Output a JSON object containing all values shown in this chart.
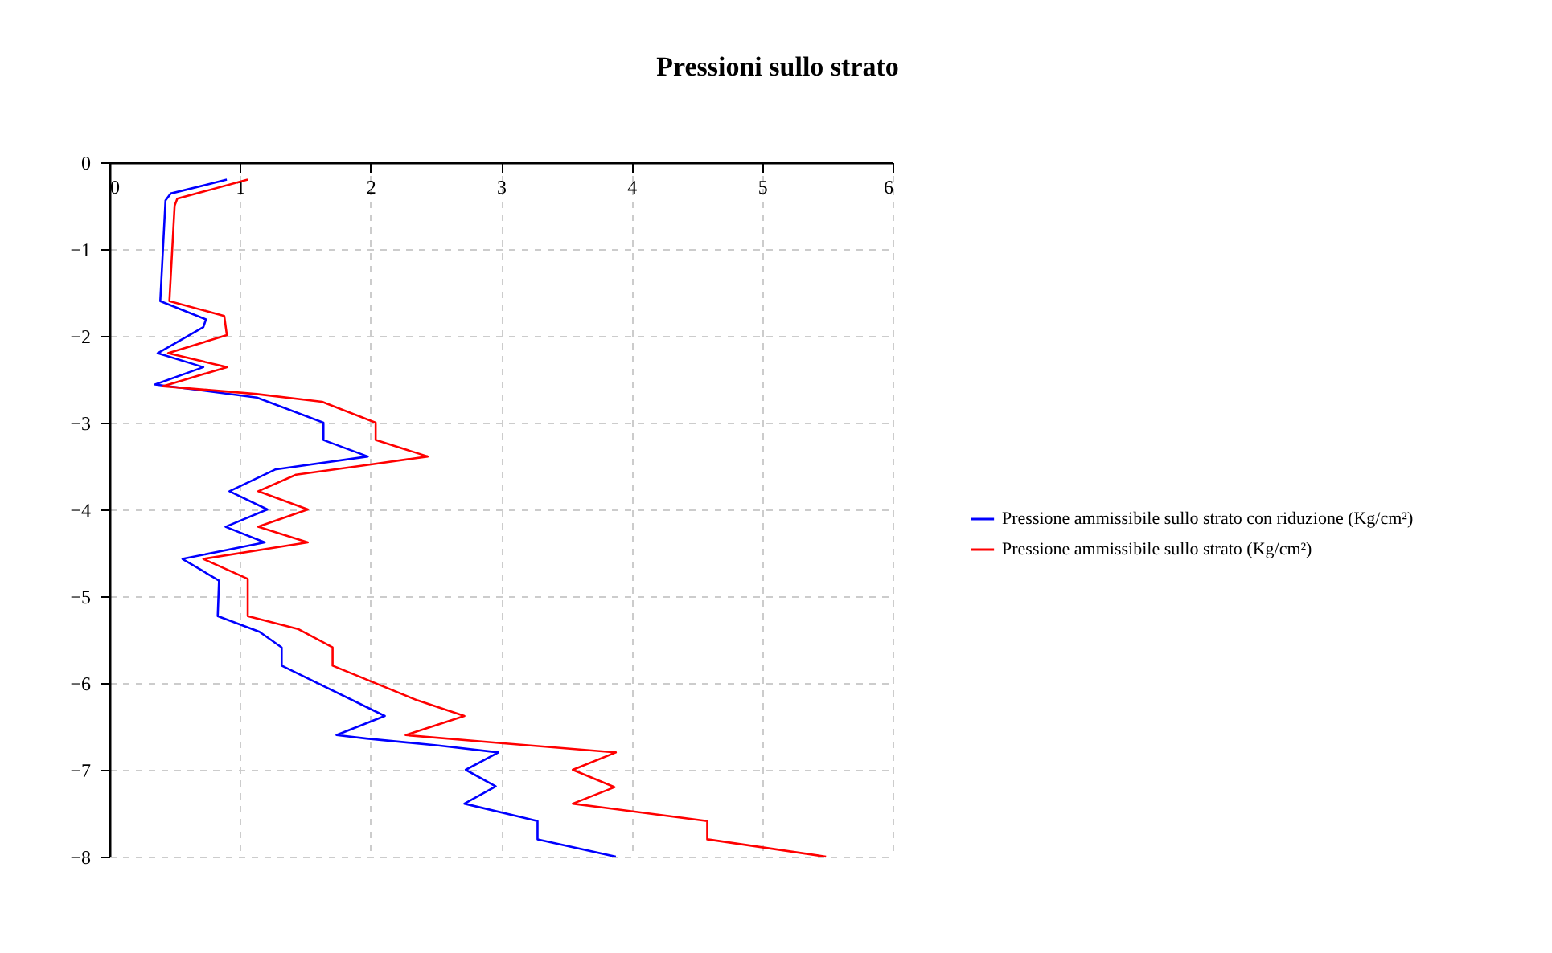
{
  "chart_data": {
    "type": "line",
    "title": "Pressioni sullo strato",
    "legend": "right",
    "grid": true,
    "line_style": "solid",
    "marker": "none",
    "xlim": [
      0,
      6
    ],
    "xticks": [
      0,
      1,
      2,
      3,
      4,
      5,
      6
    ],
    "ylim": [
      -8,
      0
    ],
    "yticks": [
      -8,
      -7,
      -6,
      -5,
      -4,
      -3,
      -2,
      -1,
      0
    ],
    "series": [
      {
        "name": "Pressione ammissibile sullo strato con riduzione (Kg/cm²)",
        "color": "#0000ff",
        "x": [
          0.9,
          0.47,
          0.43,
          0.39,
          0.74,
          0.72,
          0.37,
          0.72,
          0.35,
          1.13,
          1.64,
          1.64,
          1.98,
          1.27,
          0.92,
          1.21,
          0.89,
          1.19,
          0.56,
          0.84,
          0.83,
          1.15,
          1.32,
          1.32,
          2.11,
          1.74,
          1.97,
          2.52,
          2.98,
          2.73,
          2.96,
          2.72,
          3.28,
          3.28,
          3.88
        ],
        "values": [
          -0.2,
          -0.36,
          -0.44,
          -1.6,
          -1.81,
          -1.9,
          -2.2,
          -2.36,
          -2.56,
          -2.71,
          -3.0,
          -3.2,
          -3.39,
          -3.54,
          -3.79,
          -4.0,
          -4.2,
          -4.38,
          -4.57,
          -4.82,
          -5.23,
          -5.41,
          -5.59,
          -5.8,
          -6.38,
          -6.6,
          -6.64,
          -6.72,
          -6.8,
          -7.0,
          -7.19,
          -7.39,
          -7.59,
          -7.8,
          -8.0
        ]
      },
      {
        "name": "Pressione ammissibile sullo strato (Kg/cm²)",
        "color": "#ff0000",
        "x": [
          1.06,
          0.52,
          0.5,
          0.46,
          0.88,
          0.9,
          0.45,
          0.9,
          0.41,
          1.13,
          1.63,
          2.04,
          2.04,
          2.44,
          1.96,
          1.43,
          1.14,
          1.52,
          1.14,
          1.52,
          0.72,
          1.06,
          1.06,
          1.45,
          1.71,
          1.71,
          2.36,
          2.72,
          2.27,
          2.98,
          3.88,
          3.55,
          3.87,
          3.55,
          4.58,
          4.58,
          5.49
        ],
        "values": [
          -0.2,
          -0.42,
          -0.5,
          -1.6,
          -1.77,
          -1.99,
          -2.2,
          -2.36,
          -2.58,
          -2.67,
          -2.76,
          -3.0,
          -3.2,
          -3.39,
          -3.49,
          -3.6,
          -3.79,
          -4.0,
          -4.2,
          -4.38,
          -4.57,
          -4.8,
          -5.23,
          -5.38,
          -5.59,
          -5.8,
          -6.2,
          -6.38,
          -6.6,
          -6.69,
          -6.8,
          -7.0,
          -7.2,
          -7.39,
          -7.59,
          -7.8,
          -8.0
        ]
      }
    ]
  }
}
